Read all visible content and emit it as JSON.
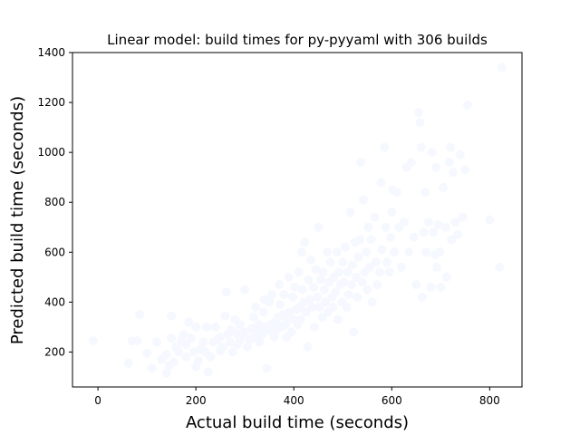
{
  "chart_data": {
    "type": "scatter",
    "title": "Linear model: build times for py-pyyaml with 306 builds",
    "xlabel": "Actual build time (seconds)",
    "ylabel": "Predicted build time (seconds)",
    "xlim": [
      -52,
      866
    ],
    "ylim": [
      60,
      1400
    ],
    "xticks": [
      0,
      200,
      400,
      600,
      800
    ],
    "yticks": [
      200,
      400,
      600,
      800,
      1000,
      1200,
      1400
    ],
    "grid": false,
    "point_color": "#f6f8ff",
    "series": [
      {
        "points": [
          [
            -10,
            245
          ],
          [
            62,
            155
          ],
          [
            70,
            245
          ],
          [
            80,
            245
          ],
          [
            85,
            350
          ],
          [
            100,
            195
          ],
          [
            110,
            135
          ],
          [
            120,
            240
          ],
          [
            130,
            170
          ],
          [
            140,
            115
          ],
          [
            140,
            190
          ],
          [
            145,
            145
          ],
          [
            150,
            345
          ],
          [
            150,
            255
          ],
          [
            155,
            160
          ],
          [
            160,
            220
          ],
          [
            165,
            200
          ],
          [
            170,
            245
          ],
          [
            175,
            270
          ],
          [
            180,
            180
          ],
          [
            180,
            230
          ],
          [
            185,
            320
          ],
          [
            190,
            255
          ],
          [
            195,
            200
          ],
          [
            200,
            300
          ],
          [
            200,
            140
          ],
          [
            205,
            165
          ],
          [
            210,
            210
          ],
          [
            215,
            240
          ],
          [
            220,
            200
          ],
          [
            222,
            300
          ],
          [
            225,
            120
          ],
          [
            230,
            180
          ],
          [
            235,
            240
          ],
          [
            240,
            300
          ],
          [
            245,
            250
          ],
          [
            250,
            260
          ],
          [
            250,
            205
          ],
          [
            255,
            220
          ],
          [
            260,
            345
          ],
          [
            262,
            440
          ],
          [
            265,
            270
          ],
          [
            270,
            240
          ],
          [
            272,
            290
          ],
          [
            275,
            200
          ],
          [
            280,
            330
          ],
          [
            283,
            275
          ],
          [
            285,
            230
          ],
          [
            290,
            310
          ],
          [
            290,
            250
          ],
          [
            295,
            270
          ],
          [
            300,
            450
          ],
          [
            300,
            280
          ],
          [
            305,
            220
          ],
          [
            310,
            250
          ],
          [
            315,
            295
          ],
          [
            318,
            340
          ],
          [
            320,
            260
          ],
          [
            322,
            380
          ],
          [
            325,
            290
          ],
          [
            328,
            310
          ],
          [
            330,
            240
          ],
          [
            335,
            270
          ],
          [
            338,
            360
          ],
          [
            340,
            410
          ],
          [
            342,
            300
          ],
          [
            345,
            290
          ],
          [
            345,
            135
          ],
          [
            350,
            400
          ],
          [
            352,
            310
          ],
          [
            355,
            430
          ],
          [
            358,
            280
          ],
          [
            360,
            260
          ],
          [
            362,
            320
          ],
          [
            365,
            290
          ],
          [
            368,
            340
          ],
          [
            370,
            470
          ],
          [
            372,
            390
          ],
          [
            375,
            300
          ],
          [
            378,
            350
          ],
          [
            380,
            430
          ],
          [
            383,
            310
          ],
          [
            385,
            260
          ],
          [
            388,
            330
          ],
          [
            390,
            500
          ],
          [
            392,
            360
          ],
          [
            395,
            280
          ],
          [
            398,
            420
          ],
          [
            400,
            330
          ],
          [
            402,
            460
          ],
          [
            405,
            370
          ],
          [
            408,
            310
          ],
          [
            410,
            520
          ],
          [
            412,
            380
          ],
          [
            414,
            330
          ],
          [
            416,
            600
          ],
          [
            418,
            450
          ],
          [
            420,
            400
          ],
          [
            422,
            640
          ],
          [
            425,
            360
          ],
          [
            428,
            220
          ],
          [
            430,
            490
          ],
          [
            432,
            410
          ],
          [
            435,
            570
          ],
          [
            437,
            380
          ],
          [
            440,
            460
          ],
          [
            442,
            300
          ],
          [
            445,
            530
          ],
          [
            448,
            420
          ],
          [
            450,
            700
          ],
          [
            452,
            380
          ],
          [
            455,
            490
          ],
          [
            458,
            340
          ],
          [
            460,
            520
          ],
          [
            462,
            450
          ],
          [
            465,
            400
          ],
          [
            468,
            600
          ],
          [
            470,
            360
          ],
          [
            472,
            480
          ],
          [
            475,
            560
          ],
          [
            478,
            420
          ],
          [
            480,
            380
          ],
          [
            482,
            500
          ],
          [
            485,
            440
          ],
          [
            488,
            600
          ],
          [
            490,
            330
          ],
          [
            492,
            520
          ],
          [
            495,
            470
          ],
          [
            498,
            400
          ],
          [
            500,
            560
          ],
          [
            502,
            480
          ],
          [
            505,
            620
          ],
          [
            508,
            380
          ],
          [
            510,
            520
          ],
          [
            512,
            430
          ],
          [
            515,
            760
          ],
          [
            518,
            470
          ],
          [
            520,
            550
          ],
          [
            522,
            280
          ],
          [
            525,
            640
          ],
          [
            528,
            500
          ],
          [
            530,
            420
          ],
          [
            532,
            580
          ],
          [
            535,
            650
          ],
          [
            537,
            960
          ],
          [
            540,
            480
          ],
          [
            542,
            810
          ],
          [
            545,
            520
          ],
          [
            548,
            600
          ],
          [
            550,
            450
          ],
          [
            552,
            700
          ],
          [
            555,
            540
          ],
          [
            558,
            650
          ],
          [
            560,
            400
          ],
          [
            565,
            740
          ],
          [
            568,
            560
          ],
          [
            570,
            470
          ],
          [
            575,
            520
          ],
          [
            578,
            880
          ],
          [
            580,
            610
          ],
          [
            585,
            1020
          ],
          [
            588,
            700
          ],
          [
            590,
            560
          ],
          [
            595,
            520
          ],
          [
            598,
            660
          ],
          [
            600,
            760
          ],
          [
            602,
            850
          ],
          [
            605,
            600
          ],
          [
            610,
            840
          ],
          [
            615,
            700
          ],
          [
            620,
            540
          ],
          [
            625,
            720
          ],
          [
            630,
            940
          ],
          [
            635,
            600
          ],
          [
            640,
            960
          ],
          [
            645,
            660
          ],
          [
            650,
            470
          ],
          [
            655,
            1160
          ],
          [
            658,
            1120
          ],
          [
            660,
            1020
          ],
          [
            662,
            420
          ],
          [
            665,
            680
          ],
          [
            668,
            840
          ],
          [
            670,
            600
          ],
          [
            675,
            720
          ],
          [
            680,
            460
          ],
          [
            682,
            1000
          ],
          [
            685,
            680
          ],
          [
            688,
            590
          ],
          [
            690,
            940
          ],
          [
            692,
            540
          ],
          [
            695,
            710
          ],
          [
            698,
            600
          ],
          [
            700,
            460
          ],
          [
            705,
            860
          ],
          [
            710,
            700
          ],
          [
            712,
            500
          ],
          [
            718,
            960
          ],
          [
            720,
            1020
          ],
          [
            722,
            650
          ],
          [
            725,
            920
          ],
          [
            730,
            720
          ],
          [
            735,
            670
          ],
          [
            740,
            990
          ],
          [
            745,
            740
          ],
          [
            750,
            930
          ],
          [
            755,
            1190
          ],
          [
            800,
            730
          ],
          [
            820,
            540
          ],
          [
            825,
            1340
          ]
        ]
      }
    ]
  }
}
